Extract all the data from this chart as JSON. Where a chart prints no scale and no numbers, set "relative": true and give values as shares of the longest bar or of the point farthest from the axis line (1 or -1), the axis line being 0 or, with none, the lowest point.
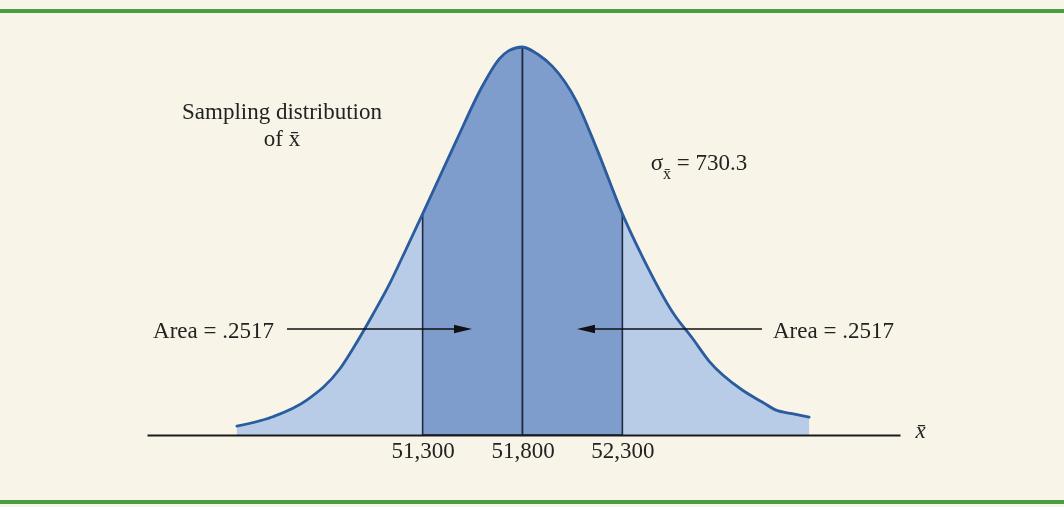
{
  "chart_data": {
    "type": "area",
    "relative": true,
    "xlabel": "x̄",
    "xlim": [
      49920,
      53690
    ],
    "xticks": [
      {
        "value": 51300,
        "label": "51,300"
      },
      {
        "value": 51800,
        "label": "51,800"
      },
      {
        "value": 52300,
        "label": "52,300"
      }
    ],
    "series": [
      {
        "color": "#b8cce8",
        "x": [
          50370,
          50550,
          50720,
          50885,
          50960,
          51050,
          51135,
          51200,
          51300,
          51470,
          51600,
          51685,
          51730,
          51800,
          51880,
          51950,
          52070,
          52170,
          52300,
          52400,
          52560,
          52650,
          52735,
          52900,
          53000,
          53070,
          53150,
          53235
        ],
        "values": [
          0.023,
          0.047,
          0.09,
          0.17,
          0.23,
          0.31,
          0.39,
          0.46,
          0.57,
          0.76,
          0.9,
          0.97,
          0.99,
          1,
          0.98,
          0.95,
          0.86,
          0.74,
          0.57,
          0.46,
          0.31,
          0.25,
          0.19,
          0.116,
          0.085,
          0.064,
          0.055,
          0.046
        ]
      },
      {
        "color": "#7e9dcc",
        "x": [
          51300,
          51470,
          51600,
          51685,
          51730,
          51800
        ],
        "values": [
          0.57,
          0.76,
          0.9,
          0.97,
          0.99,
          1
        ]
      },
      {
        "color": "#7e9dcc",
        "x": [
          51800,
          51880,
          51950,
          52070,
          52170,
          52300
        ],
        "values": [
          1,
          0.98,
          0.95,
          0.86,
          0.74,
          0.57
        ]
      }
    ],
    "annotations": [
      "Sampling distribution of x̄",
      "σ$_{x̄}$ = 730.3",
      "Area = .2517",
      "Area = .2517"
    ]
  }
}
